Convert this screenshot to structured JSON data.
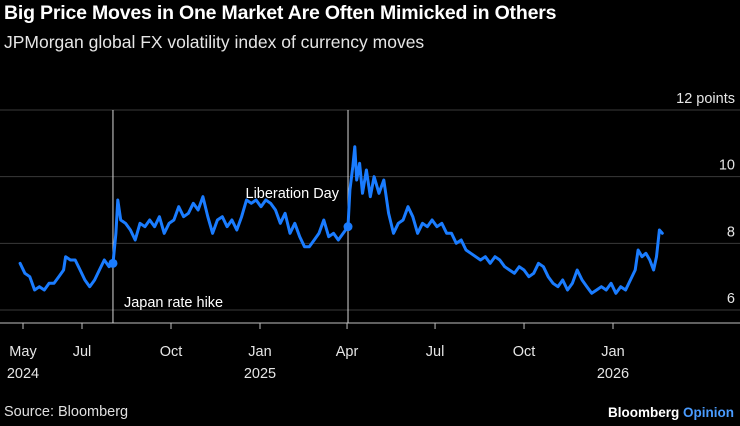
{
  "header": {
    "title": "Big Price Moves in One Market Are Often Mimicked in Others",
    "subtitle": "JPMorgan global FX volatility index of currency moves"
  },
  "footer": {
    "source": "Source: Bloomberg",
    "brand_main": "Bloomberg",
    "brand_accent": "Opinion"
  },
  "colors": {
    "line": "#1a7cff",
    "background": "#000000",
    "grid": "#3a3a3a"
  },
  "chart_data": {
    "type": "line",
    "title": "Big Price Moves in One Market Are Often Mimicked in Others",
    "subtitle": "JPMorgan global FX volatility index of currency moves",
    "xlabel": "",
    "ylabel": "points",
    "ylim": [
      5.8,
      12
    ],
    "y_ticks": [
      6,
      8,
      10,
      12
    ],
    "y_tick_labels": [
      "6",
      "8",
      "10",
      "12 points"
    ],
    "x_domain": [
      "2024-05-01",
      "2026-03-15"
    ],
    "x_ticks": [
      {
        "date": "2024-05-01",
        "label": "May",
        "year": "2024"
      },
      {
        "date": "2024-07-01",
        "label": "Jul",
        "year": ""
      },
      {
        "date": "2024-10-01",
        "label": "Oct",
        "year": ""
      },
      {
        "date": "2025-01-01",
        "label": "Jan",
        "year": "2025"
      },
      {
        "date": "2025-04-01",
        "label": "Apr",
        "year": ""
      },
      {
        "date": "2025-07-01",
        "label": "Jul",
        "year": ""
      },
      {
        "date": "2025-10-01",
        "label": "Oct",
        "year": ""
      },
      {
        "date": "2026-01-01",
        "label": "Jan",
        "year": "2026"
      }
    ],
    "grid": true,
    "annotations": [
      {
        "date": "2024-08-02",
        "value": 7.4,
        "label": "Japan rate hike",
        "label_side": "below-right"
      },
      {
        "date": "2025-04-02",
        "value": 8.5,
        "label": "Liberation Day",
        "label_side": "above-left"
      }
    ],
    "series": [
      {
        "name": "JPMorgan global FX volatility index",
        "points": [
          [
            "2024-04-28",
            7.4
          ],
          [
            "2024-05-03",
            7.1
          ],
          [
            "2024-05-08",
            7.0
          ],
          [
            "2024-05-13",
            6.6
          ],
          [
            "2024-05-18",
            6.7
          ],
          [
            "2024-05-23",
            6.6
          ],
          [
            "2024-05-28",
            6.8
          ],
          [
            "2024-06-02",
            6.8
          ],
          [
            "2024-06-07",
            7.0
          ],
          [
            "2024-06-12",
            7.2
          ],
          [
            "2024-06-14",
            7.6
          ],
          [
            "2024-06-19",
            7.5
          ],
          [
            "2024-06-24",
            7.5
          ],
          [
            "2024-06-29",
            7.2
          ],
          [
            "2024-07-04",
            6.9
          ],
          [
            "2024-07-09",
            6.7
          ],
          [
            "2024-07-14",
            6.9
          ],
          [
            "2024-07-19",
            7.2
          ],
          [
            "2024-07-24",
            7.5
          ],
          [
            "2024-07-29",
            7.3
          ],
          [
            "2024-08-02",
            7.4
          ],
          [
            "2024-08-05",
            8.3
          ],
          [
            "2024-08-07",
            9.3
          ],
          [
            "2024-08-10",
            8.7
          ],
          [
            "2024-08-15",
            8.6
          ],
          [
            "2024-08-20",
            8.4
          ],
          [
            "2024-08-25",
            8.1
          ],
          [
            "2024-08-30",
            8.6
          ],
          [
            "2024-09-04",
            8.5
          ],
          [
            "2024-09-09",
            8.7
          ],
          [
            "2024-09-14",
            8.5
          ],
          [
            "2024-09-19",
            8.8
          ],
          [
            "2024-09-24",
            8.3
          ],
          [
            "2024-09-29",
            8.6
          ],
          [
            "2024-10-04",
            8.7
          ],
          [
            "2024-10-09",
            9.1
          ],
          [
            "2024-10-14",
            8.8
          ],
          [
            "2024-10-19",
            8.9
          ],
          [
            "2024-10-24",
            9.2
          ],
          [
            "2024-10-29",
            9.0
          ],
          [
            "2024-11-03",
            9.4
          ],
          [
            "2024-11-08",
            8.8
          ],
          [
            "2024-11-13",
            8.3
          ],
          [
            "2024-11-18",
            8.7
          ],
          [
            "2024-11-23",
            8.8
          ],
          [
            "2024-11-28",
            8.5
          ],
          [
            "2024-12-03",
            8.7
          ],
          [
            "2024-12-08",
            8.4
          ],
          [
            "2024-12-13",
            8.8
          ],
          [
            "2024-12-18",
            9.3
          ],
          [
            "2024-12-23",
            9.2
          ],
          [
            "2024-12-28",
            9.3
          ],
          [
            "2025-01-02",
            9.1
          ],
          [
            "2025-01-07",
            9.3
          ],
          [
            "2025-01-12",
            9.2
          ],
          [
            "2025-01-17",
            9.0
          ],
          [
            "2025-01-22",
            8.6
          ],
          [
            "2025-01-27",
            8.9
          ],
          [
            "2025-02-01",
            8.3
          ],
          [
            "2025-02-06",
            8.6
          ],
          [
            "2025-02-11",
            8.2
          ],
          [
            "2025-02-16",
            7.9
          ],
          [
            "2025-02-21",
            7.9
          ],
          [
            "2025-02-26",
            8.1
          ],
          [
            "2025-03-03",
            8.3
          ],
          [
            "2025-03-08",
            8.7
          ],
          [
            "2025-03-13",
            8.2
          ],
          [
            "2025-03-18",
            8.3
          ],
          [
            "2025-03-23",
            8.1
          ],
          [
            "2025-03-28",
            8.3
          ],
          [
            "2025-04-02",
            8.5
          ],
          [
            "2025-04-04",
            9.6
          ],
          [
            "2025-04-07",
            10.3
          ],
          [
            "2025-04-09",
            10.9
          ],
          [
            "2025-04-11",
            9.9
          ],
          [
            "2025-04-14",
            10.4
          ],
          [
            "2025-04-17",
            9.5
          ],
          [
            "2025-04-21",
            10.2
          ],
          [
            "2025-04-25",
            9.4
          ],
          [
            "2025-04-29",
            10.0
          ],
          [
            "2025-05-04",
            9.5
          ],
          [
            "2025-05-09",
            9.9
          ],
          [
            "2025-05-14",
            8.9
          ],
          [
            "2025-05-19",
            8.3
          ],
          [
            "2025-05-24",
            8.6
          ],
          [
            "2025-05-29",
            8.7
          ],
          [
            "2025-06-03",
            9.1
          ],
          [
            "2025-06-08",
            8.8
          ],
          [
            "2025-06-13",
            8.3
          ],
          [
            "2025-06-18",
            8.6
          ],
          [
            "2025-06-23",
            8.5
          ],
          [
            "2025-06-28",
            8.7
          ],
          [
            "2025-07-03",
            8.5
          ],
          [
            "2025-07-08",
            8.6
          ],
          [
            "2025-07-13",
            8.3
          ],
          [
            "2025-07-18",
            8.3
          ],
          [
            "2025-07-23",
            8.0
          ],
          [
            "2025-07-28",
            8.1
          ],
          [
            "2025-08-02",
            7.8
          ],
          [
            "2025-08-07",
            7.7
          ],
          [
            "2025-08-12",
            7.6
          ],
          [
            "2025-08-17",
            7.5
          ],
          [
            "2025-08-22",
            7.6
          ],
          [
            "2025-08-27",
            7.4
          ],
          [
            "2025-09-01",
            7.6
          ],
          [
            "2025-09-06",
            7.5
          ],
          [
            "2025-09-11",
            7.3
          ],
          [
            "2025-09-16",
            7.2
          ],
          [
            "2025-09-21",
            7.1
          ],
          [
            "2025-09-26",
            7.3
          ],
          [
            "2025-10-01",
            7.2
          ],
          [
            "2025-10-06",
            7.0
          ],
          [
            "2025-10-11",
            7.1
          ],
          [
            "2025-10-16",
            7.4
          ],
          [
            "2025-10-21",
            7.3
          ],
          [
            "2025-10-26",
            7.0
          ],
          [
            "2025-10-31",
            6.8
          ],
          [
            "2025-11-05",
            6.7
          ],
          [
            "2025-11-10",
            6.9
          ],
          [
            "2025-11-15",
            6.6
          ],
          [
            "2025-11-20",
            6.8
          ],
          [
            "2025-11-25",
            7.2
          ],
          [
            "2025-11-30",
            6.9
          ],
          [
            "2025-12-05",
            6.7
          ],
          [
            "2025-12-10",
            6.5
          ],
          [
            "2025-12-15",
            6.6
          ],
          [
            "2025-12-20",
            6.7
          ],
          [
            "2025-12-25",
            6.6
          ],
          [
            "2025-12-30",
            6.8
          ],
          [
            "2026-01-04",
            6.5
          ],
          [
            "2026-01-09",
            6.7
          ],
          [
            "2026-01-14",
            6.6
          ],
          [
            "2026-01-19",
            6.9
          ],
          [
            "2026-01-24",
            7.2
          ],
          [
            "2026-01-27",
            7.8
          ],
          [
            "2026-01-31",
            7.6
          ],
          [
            "2026-02-04",
            7.7
          ],
          [
            "2026-02-08",
            7.5
          ],
          [
            "2026-02-12",
            7.2
          ],
          [
            "2026-02-15",
            7.6
          ],
          [
            "2026-02-18",
            8.4
          ],
          [
            "2026-02-21",
            8.3
          ]
        ]
      }
    ]
  }
}
